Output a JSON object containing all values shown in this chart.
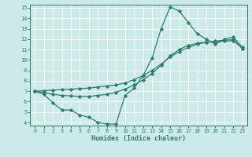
{
  "xlabel": "Humidex (Indice chaleur)",
  "bg_color": "#cceae8",
  "grid_color": "#ffffff",
  "line_color": "#2e7d70",
  "xlim": [
    -0.5,
    23.5
  ],
  "ylim": [
    3.7,
    15.3
  ],
  "yticks": [
    4,
    5,
    6,
    7,
    8,
    9,
    10,
    11,
    12,
    13,
    14,
    15
  ],
  "xticks": [
    0,
    1,
    2,
    3,
    4,
    5,
    6,
    7,
    8,
    9,
    10,
    11,
    12,
    13,
    14,
    15,
    16,
    17,
    18,
    19,
    20,
    21,
    22,
    23
  ],
  "line1_x": [
    0,
    1,
    2,
    3,
    4,
    5,
    6,
    7,
    8,
    9,
    10,
    11,
    12,
    13,
    14,
    15,
    16,
    17,
    18,
    19,
    20,
    21,
    22,
    23
  ],
  "line1_y": [
    7.0,
    6.7,
    5.9,
    5.2,
    5.2,
    4.7,
    4.5,
    4.0,
    3.85,
    3.85,
    6.6,
    7.3,
    8.5,
    10.2,
    13.0,
    15.1,
    14.7,
    13.6,
    12.5,
    12.0,
    11.5,
    12.0,
    12.2,
    11.2
  ],
  "line2_x": [
    0,
    1,
    2,
    3,
    4,
    5,
    6,
    7,
    8,
    9,
    10,
    11,
    12,
    13,
    14,
    15,
    16,
    17,
    18,
    19,
    20,
    21,
    22,
    23
  ],
  "line2_y": [
    7.0,
    7.05,
    7.1,
    7.15,
    7.2,
    7.25,
    7.3,
    7.4,
    7.5,
    7.6,
    7.8,
    8.1,
    8.5,
    9.0,
    9.6,
    10.3,
    10.8,
    11.2,
    11.5,
    11.7,
    11.8,
    11.9,
    11.95,
    11.1
  ],
  "line3_x": [
    0,
    1,
    2,
    3,
    4,
    5,
    6,
    7,
    8,
    9,
    10,
    11,
    12,
    13,
    14,
    15,
    16,
    17,
    18,
    19,
    20,
    21,
    22,
    23
  ],
  "line3_y": [
    7.0,
    6.9,
    6.7,
    6.6,
    6.55,
    6.5,
    6.5,
    6.6,
    6.7,
    6.9,
    7.2,
    7.6,
    8.1,
    8.7,
    9.5,
    10.4,
    11.0,
    11.4,
    11.6,
    11.7,
    11.75,
    11.8,
    11.85,
    11.1
  ]
}
